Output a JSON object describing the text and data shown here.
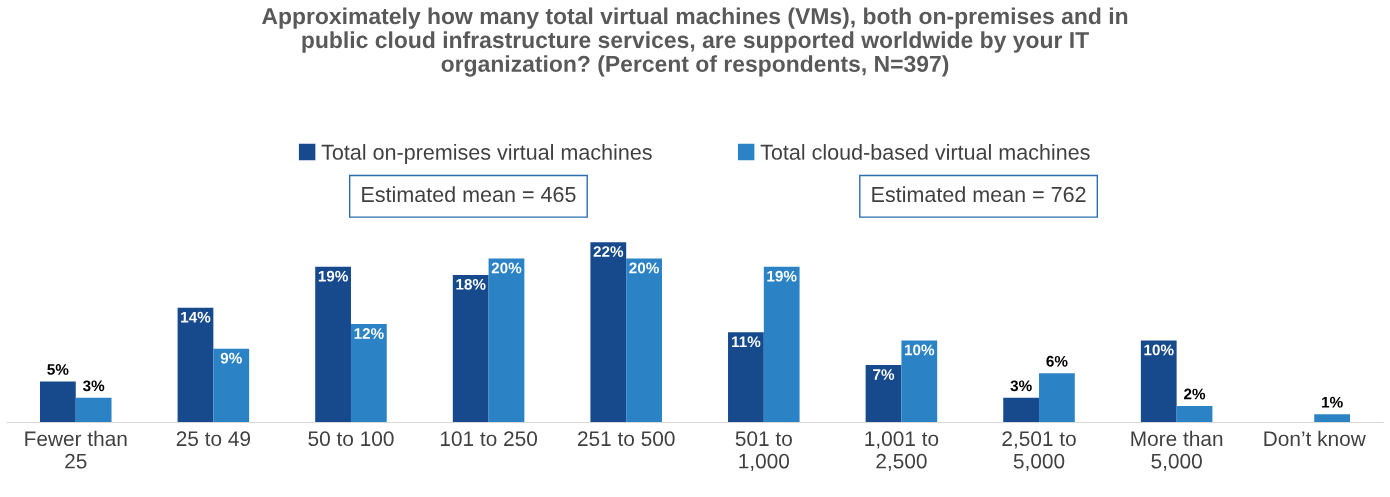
{
  "chart_data": {
    "type": "bar",
    "title": "Approximately how many total virtual machines (VMs), both on-premises and in\npublic cloud infrastructure services, are supported worldwide by your IT\norganization? (Percent of respondents, N=397)",
    "categories": [
      "Fewer than\n25",
      "25 to 49",
      "50 to 100",
      "101 to 250",
      "251 to 500",
      "501 to\n1,000",
      "1,001 to\n2,500",
      "2,501 to\n5,000",
      "More than\n5,000",
      "Don’t know"
    ],
    "series": [
      {
        "name": "Total on-premises virtual machines",
        "color": "#174a8c",
        "values": [
          5,
          14,
          19,
          18,
          22,
          11,
          7,
          3,
          10,
          null
        ],
        "value_labels": [
          "5%",
          "14%",
          "19%",
          "18%",
          "22%",
          "11%",
          "7%",
          "3%",
          "10%",
          null
        ]
      },
      {
        "name": "Total cloud-based virtual machines",
        "color": "#2b83c6",
        "values": [
          3,
          9,
          12,
          20,
          20,
          19,
          10,
          6,
          2,
          1
        ],
        "value_labels": [
          "3%",
          "9%",
          "12%",
          "20%",
          "20%",
          "19%",
          "10%",
          "6%",
          "2%",
          "1%"
        ]
      }
    ],
    "annotations": [
      "Estimated mean = 465",
      "Estimated mean = 762"
    ],
    "legend": "top",
    "grid": false
  }
}
